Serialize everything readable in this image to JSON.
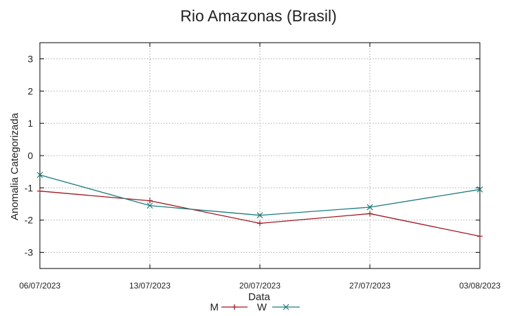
{
  "chart_data": {
    "type": "line",
    "title": "Rio Amazonas (Brasil)",
    "xlabel": "Data",
    "ylabel": "Anomalia Categorizada",
    "categories": [
      "06/07/2023",
      "13/07/2023",
      "20/07/2023",
      "27/07/2023",
      "03/08/2023"
    ],
    "ylim": [
      -3.5,
      3.5
    ],
    "yticks": [
      3,
      2,
      1,
      0,
      -1,
      -2,
      -3
    ],
    "grid": true,
    "legend_position": "bottom",
    "series": [
      {
        "name": "M",
        "color": "#a0141e",
        "marker": "plus",
        "values": [
          -1.1,
          -1.4,
          -2.1,
          -1.8,
          -2.5
        ]
      },
      {
        "name": "W",
        "color": "#1a7a7a",
        "marker": "x",
        "values": [
          -0.6,
          -1.55,
          -1.85,
          -1.6,
          -1.05
        ]
      }
    ]
  }
}
